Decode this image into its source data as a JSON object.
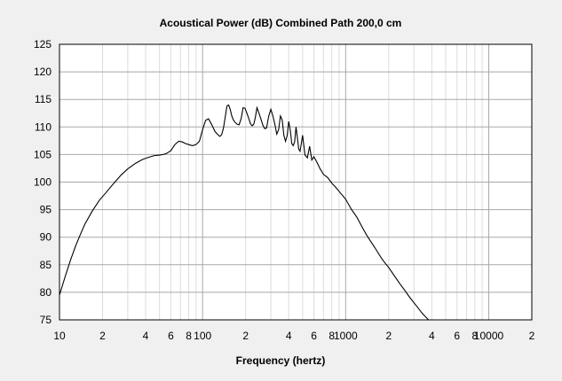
{
  "chart_data": {
    "type": "line",
    "title": "Acoustical Power (dB)    Combined    Path 200,0 cm",
    "xlabel": "Frequency (hertz)",
    "ylabel": "",
    "x_scale": "log",
    "xlim": [
      10,
      20000
    ],
    "ylim": [
      75,
      125
    ],
    "grid": true,
    "y_ticks": [
      "125",
      "120",
      "115",
      "110",
      "105",
      "100",
      "95",
      "90",
      "85",
      "80",
      "75"
    ],
    "y_tick_values": [
      125,
      120,
      115,
      110,
      105,
      100,
      95,
      90,
      85,
      80,
      75
    ],
    "x_ticks": [
      {
        "value": 10,
        "label": "10"
      },
      {
        "value": 20,
        "label": "2"
      },
      {
        "value": 40,
        "label": "4"
      },
      {
        "value": 60,
        "label": "6"
      },
      {
        "value": 80,
        "label": "8"
      },
      {
        "value": 100,
        "label": "100"
      },
      {
        "value": 200,
        "label": "2"
      },
      {
        "value": 400,
        "label": "4"
      },
      {
        "value": 600,
        "label": "6"
      },
      {
        "value": 800,
        "label": "8"
      },
      {
        "value": 1000,
        "label": "1000"
      },
      {
        "value": 2000,
        "label": "2"
      },
      {
        "value": 4000,
        "label": "4"
      },
      {
        "value": 6000,
        "label": "6"
      },
      {
        "value": 8000,
        "label": "8"
      },
      {
        "value": 10000,
        "label": "10000"
      },
      {
        "value": 20000,
        "label": "2"
      }
    ],
    "series": [
      {
        "color": "#000000",
        "x": [
          10,
          11,
          12,
          13,
          14,
          15,
          17,
          19,
          21,
          24,
          27,
          30,
          34,
          38,
          42,
          46,
          50,
          53,
          56,
          60,
          64,
          68,
          72,
          76,
          80,
          85,
          90,
          95,
          100,
          105,
          110,
          116,
          122,
          128,
          132,
          136,
          140,
          144,
          148,
          152,
          156,
          160,
          164,
          168,
          174,
          180,
          186,
          192,
          198,
          204,
          210,
          216,
          222,
          228,
          234,
          240,
          248,
          256,
          264,
          272,
          280,
          290,
          300,
          310,
          320,
          330,
          340,
          350,
          360,
          370,
          380,
          390,
          400,
          410,
          420,
          430,
          440,
          450,
          460,
          470,
          480,
          490,
          500,
          520,
          540,
          560,
          580,
          600,
          630,
          660,
          700,
          750,
          800,
          850,
          900,
          1000,
          1100,
          1200,
          1300,
          1400,
          1500,
          1600,
          1700,
          1800,
          1900,
          2000,
          2200,
          2400,
          2600,
          2800,
          3000,
          3200,
          3400,
          3600,
          3800,
          3950
        ],
        "values": [
          79.5,
          83.0,
          86.0,
          88.5,
          90.5,
          92.3,
          94.8,
          96.7,
          98.0,
          99.8,
          101.3,
          102.4,
          103.4,
          104.1,
          104.5,
          104.8,
          104.9,
          105.0,
          105.2,
          105.7,
          106.8,
          107.4,
          107.3,
          107.0,
          106.8,
          106.6,
          106.8,
          107.4,
          109.5,
          111.2,
          111.5,
          110.4,
          109.2,
          108.6,
          108.3,
          108.6,
          109.8,
          111.8,
          113.8,
          114.0,
          113.2,
          112.0,
          111.3,
          110.9,
          110.5,
          110.4,
          111.5,
          113.5,
          113.4,
          112.5,
          111.6,
          110.6,
          110.2,
          110.5,
          111.8,
          113.5,
          112.5,
          111.4,
          110.3,
          109.7,
          109.8,
          112.0,
          113.2,
          112.0,
          110.5,
          108.7,
          109.5,
          112.0,
          111.3,
          108.5,
          107.4,
          108.4,
          111.0,
          109.5,
          107.0,
          106.6,
          107.3,
          110.0,
          108.0,
          106.0,
          105.6,
          107.0,
          108.5,
          104.9,
          104.4,
          106.5,
          104.0,
          104.6,
          103.6,
          102.5,
          101.4,
          100.8,
          99.8,
          99.1,
          98.3,
          96.9,
          95.0,
          93.6,
          91.9,
          90.4,
          89.2,
          88.1,
          87.0,
          86.0,
          85.2,
          84.5,
          82.9,
          81.5,
          80.3,
          79.1,
          78.1,
          77.2,
          76.3,
          75.6,
          75.0,
          74.8
        ]
      }
    ]
  }
}
